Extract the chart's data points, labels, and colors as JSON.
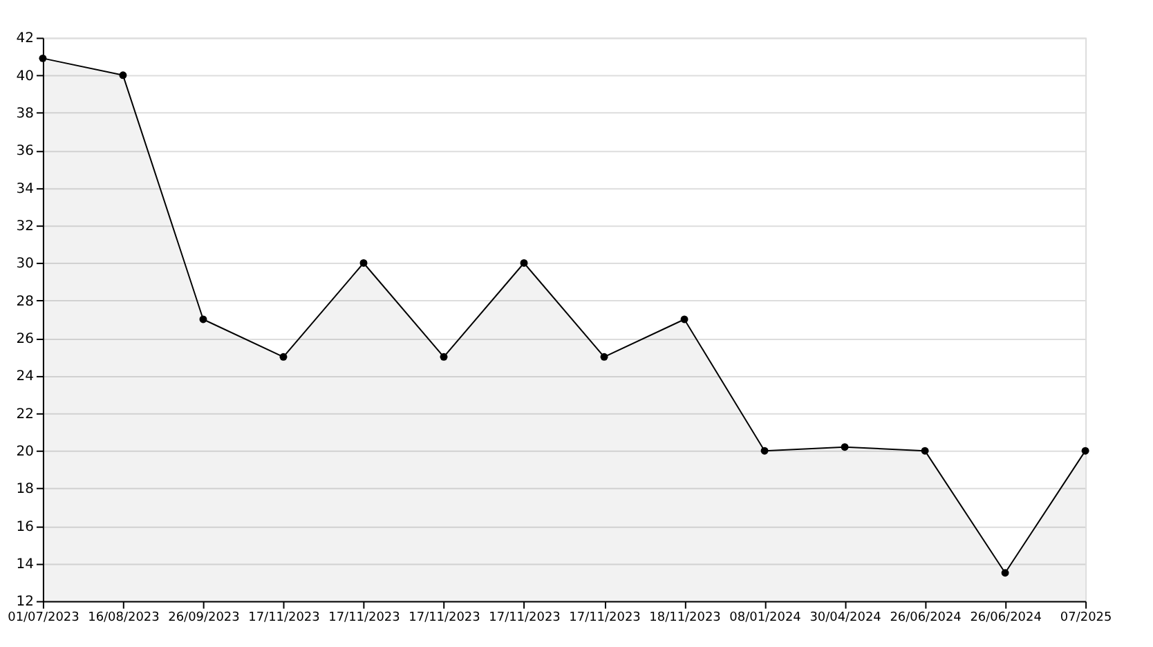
{
  "chart_data": {
    "type": "area",
    "categories": [
      "01/07/2023",
      "16/08/2023",
      "26/09/2023",
      "17/11/2023",
      "17/11/2023",
      "17/11/2023",
      "17/11/2023",
      "17/11/2023",
      "18/11/2023",
      "08/01/2024",
      "30/04/2024",
      "26/06/2024",
      "26/06/2024",
      "07/2025"
    ],
    "series": [
      {
        "color": "#000000",
        "values": [
          40.9,
          40,
          27,
          25,
          30,
          25,
          30,
          25,
          27,
          20,
          20.2,
          20,
          13.5,
          20
        ]
      }
    ],
    "ylim": [
      12,
      42
    ],
    "yticks": [
      12,
      14,
      16,
      18,
      20,
      22,
      24,
      26,
      28,
      30,
      32,
      34,
      36,
      38,
      40,
      42
    ],
    "grid": "y",
    "marker": "circle",
    "line_style": "solid"
  }
}
